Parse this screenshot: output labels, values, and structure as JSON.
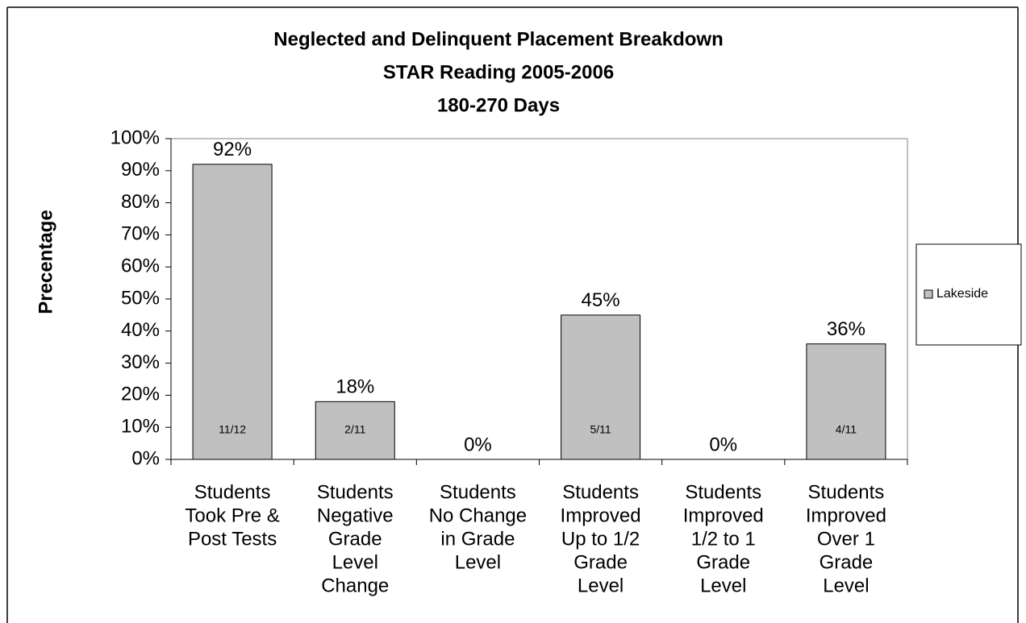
{
  "chart_data": {
    "type": "bar",
    "title": [
      "Neglected and Delinquent Placement Breakdown",
      "STAR Reading 2005-2006",
      "180-270 Days"
    ],
    "y_label": "Precentage",
    "categories": [
      [
        "Students",
        "Took Pre &",
        "Post Tests"
      ],
      [
        "Students",
        "Negative",
        "Grade",
        "Level",
        "Change"
      ],
      [
        "Students",
        "No Change",
        "in Grade",
        "Level"
      ],
      [
        "Students",
        "Improved",
        "Up to 1/2",
        "Grade",
        "Level"
      ],
      [
        "Students",
        "Improved",
        "1/2 to 1",
        "Grade",
        "Level"
      ],
      [
        "Students",
        "Improved",
        "Over 1",
        "Grade",
        "Level"
      ]
    ],
    "series": [
      {
        "name": "Lakeside",
        "color": "#c0c0c0",
        "values": [
          92,
          18,
          0,
          45,
          0,
          36
        ],
        "value_labels": [
          "92%",
          "18%",
          "0%",
          "45%",
          "0%",
          "36%"
        ],
        "counts": [
          "11/12",
          "2/11",
          null,
          "5/11",
          null,
          "4/11"
        ]
      }
    ],
    "ylim": [
      0,
      100
    ],
    "yticks": [
      {
        "value": 0,
        "label": "0%"
      },
      {
        "value": 10,
        "label": "10%"
      },
      {
        "value": 20,
        "label": "20%"
      },
      {
        "value": 30,
        "label": "30%"
      },
      {
        "value": 40,
        "label": "40%"
      },
      {
        "value": 50,
        "label": "50%"
      },
      {
        "value": 60,
        "label": "60%"
      },
      {
        "value": 70,
        "label": "70%"
      },
      {
        "value": 80,
        "label": "80%"
      },
      {
        "value": 90,
        "label": "90%"
      },
      {
        "value": 100,
        "label": "100%"
      }
    ],
    "legend": "right"
  }
}
